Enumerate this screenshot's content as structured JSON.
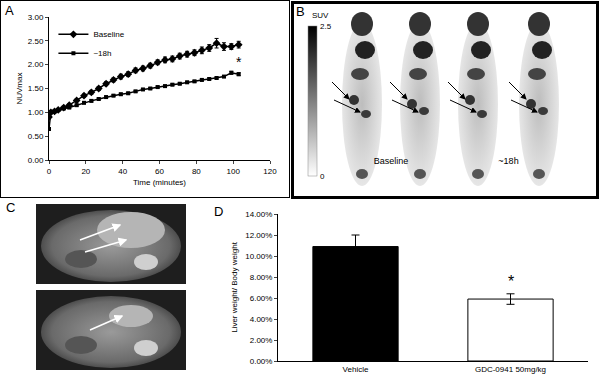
{
  "chart_data": [
    {
      "panel": "A",
      "type": "line",
      "x": [
        0,
        1,
        3,
        5,
        8,
        11,
        15,
        19,
        23,
        27,
        31,
        35,
        39,
        43,
        47,
        51,
        55,
        59,
        63,
        67,
        71,
        75,
        79,
        83,
        87,
        91,
        95,
        99,
        103
      ],
      "series": [
        {
          "name": "Baseline",
          "color": "#000000",
          "marker": "diamond",
          "line_style": "solid",
          "values": [
            0.9,
            1.0,
            1.02,
            1.05,
            1.1,
            1.15,
            1.25,
            1.35,
            1.42,
            1.5,
            1.6,
            1.68,
            1.75,
            1.8,
            1.88,
            1.92,
            1.98,
            2.05,
            2.1,
            2.12,
            2.18,
            2.22,
            2.25,
            2.3,
            2.35,
            2.45,
            2.38,
            2.38,
            2.42
          ],
          "errors": [
            0.02,
            0.02,
            0.02,
            0.02,
            0.03,
            0.03,
            0.03,
            0.03,
            0.04,
            0.04,
            0.04,
            0.04,
            0.05,
            0.05,
            0.05,
            0.05,
            0.05,
            0.05,
            0.06,
            0.06,
            0.06,
            0.06,
            0.06,
            0.07,
            0.07,
            0.1,
            0.08,
            0.06,
            0.07
          ]
        },
        {
          "name": "~18h",
          "color": "#000000",
          "marker": "square",
          "line_style": "solid",
          "values": [
            0.65,
            1.0,
            1.02,
            1.05,
            1.08,
            1.1,
            1.15,
            1.2,
            1.24,
            1.28,
            1.32,
            1.35,
            1.38,
            1.4,
            1.44,
            1.48,
            1.5,
            1.53,
            1.55,
            1.58,
            1.6,
            1.63,
            1.65,
            1.68,
            1.7,
            1.72,
            1.75,
            1.83,
            1.8
          ],
          "errors": [
            0.02,
            0.02,
            0.02,
            0.02,
            0.02,
            0.02,
            0.02,
            0.02,
            0.02,
            0.02,
            0.02,
            0.02,
            0.02,
            0.02,
            0.02,
            0.02,
            0.02,
            0.02,
            0.02,
            0.02,
            0.02,
            0.02,
            0.02,
            0.02,
            0.02,
            0.02,
            0.02,
            0.03,
            0.03
          ]
        }
      ],
      "x_label": "Time (minutes)",
      "y_label": "NUVmax",
      "xlim": [
        0,
        120
      ],
      "xticks": [
        0,
        20,
        40,
        60,
        80,
        100,
        120
      ],
      "ylim": [
        0,
        3
      ],
      "yticks": [
        {
          "value": 0,
          "label": "0.00"
        },
        {
          "value": 0.5,
          "label": "0.50"
        },
        {
          "value": 1,
          "label": "1.00"
        },
        {
          "value": 1.5,
          "label": "1.50"
        },
        {
          "value": 2,
          "label": "2.00"
        },
        {
          "value": 2.5,
          "label": "2.50"
        },
        {
          "value": 3,
          "label": "3.00"
        }
      ],
      "grid": false,
      "legend": "top-left",
      "annotations": [
        {
          "text": "*",
          "series": "~18h"
        }
      ]
    },
    {
      "panel": "D",
      "type": "bar",
      "categories": [
        "Vehicle",
        "GDC-0941 50mg/kg"
      ],
      "values": [
        10.9,
        5.9
      ],
      "errors": [
        1.1,
        0.5
      ],
      "colors": [
        "#000000",
        "#ffffff"
      ],
      "y_label": "Liver weight/ Body weight",
      "ylim": [
        0,
        14
      ],
      "yticks": [
        {
          "value": 0,
          "label": "0.00%"
        },
        {
          "value": 2,
          "label": "2.00%"
        },
        {
          "value": 4,
          "label": "4.00%"
        },
        {
          "value": 6,
          "label": "6.00%"
        },
        {
          "value": 8,
          "label": "8.00%"
        },
        {
          "value": 10,
          "label": "10.00%"
        },
        {
          "value": 12,
          "label": "12.00%"
        },
        {
          "value": 14,
          "label": "14.00%"
        }
      ],
      "grid": false,
      "annotations": [
        {
          "text": "*",
          "category": "GDC-0941 50mg/kg"
        }
      ]
    }
  ],
  "images": [
    {
      "panel": "B",
      "colorbar": {
        "title": "SUV",
        "range": [
          0,
          2.5
        ],
        "ticks": [
          2.5,
          0
        ]
      },
      "labels": [
        "Baseline",
        "~18h"
      ]
    },
    {
      "panel": "C"
    }
  ]
}
